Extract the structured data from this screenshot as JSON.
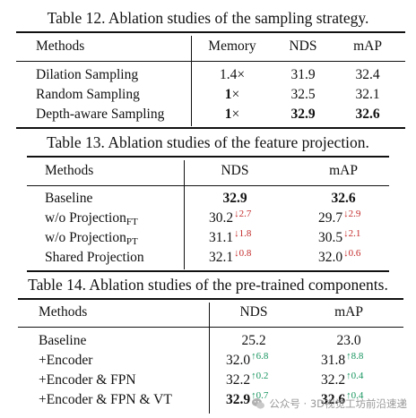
{
  "table12": {
    "caption": "Table 12. Ablation studies of the sampling strategy.",
    "headers": [
      "Methods",
      "Memory",
      "NDS",
      "mAP"
    ],
    "rows": [
      {
        "method": "Dilation Sampling",
        "memory_num": "1.4",
        "memory_unit": "×",
        "nds": "31.9",
        "map": "32.4"
      },
      {
        "method": "Random Sampling",
        "memory_num": "1",
        "memory_unit": "×",
        "nds": "32.5",
        "map": "32.1"
      },
      {
        "method": "Depth-aware Sampling",
        "memory_num": "1",
        "memory_unit": "×",
        "nds": "32.9",
        "map": "32.6"
      }
    ]
  },
  "table13": {
    "caption": "Table 13. Ablation studies of the feature projection.",
    "headers": [
      "Methods",
      "NDS",
      "mAP"
    ],
    "rows": [
      {
        "method": "Baseline",
        "method_sub": "",
        "nds": "32.9",
        "nds_delta": "",
        "map": "32.6",
        "map_delta": ""
      },
      {
        "method": "w/o Projection",
        "method_sub": "FT",
        "nds": "30.2",
        "nds_delta": "↓2.7",
        "map": "29.7",
        "map_delta": "↓2.9"
      },
      {
        "method": "w/o Projection",
        "method_sub": "PT",
        "nds": "31.1",
        "nds_delta": "↓1.8",
        "map": "30.5",
        "map_delta": "↓2.1"
      },
      {
        "method": "Shared Projection",
        "method_sub": "",
        "nds": "32.1",
        "nds_delta": "↓0.8",
        "map": "32.0",
        "map_delta": "↓0.6"
      }
    ]
  },
  "table14": {
    "caption": "Table 14. Ablation studies of the pre-trained components.",
    "headers": [
      "Methods",
      "NDS",
      "mAP"
    ],
    "rows": [
      {
        "method": "Baseline",
        "nds": "25.2",
        "nds_delta": "",
        "map": "23.0",
        "map_delta": ""
      },
      {
        "method": "+Encoder",
        "nds": "32.0",
        "nds_delta": "↑6.8",
        "map": "31.8",
        "map_delta": "↑8.8"
      },
      {
        "method": "+Encoder & FPN",
        "nds": "32.2",
        "nds_delta": "↑0.2",
        "map": "32.2",
        "map_delta": "↑0.4"
      },
      {
        "method": "+Encoder & FPN & VT",
        "nds": "32.9",
        "nds_delta": "↑0.7",
        "map": "32.6",
        "map_delta": "↑0.4"
      }
    ]
  },
  "watermark": {
    "text": "公众号 · 3D视觉工坊前沿速递",
    "icon": "wechat-icon"
  },
  "colors": {
    "decrease": "#c42a2a",
    "increase": "#17955f"
  }
}
